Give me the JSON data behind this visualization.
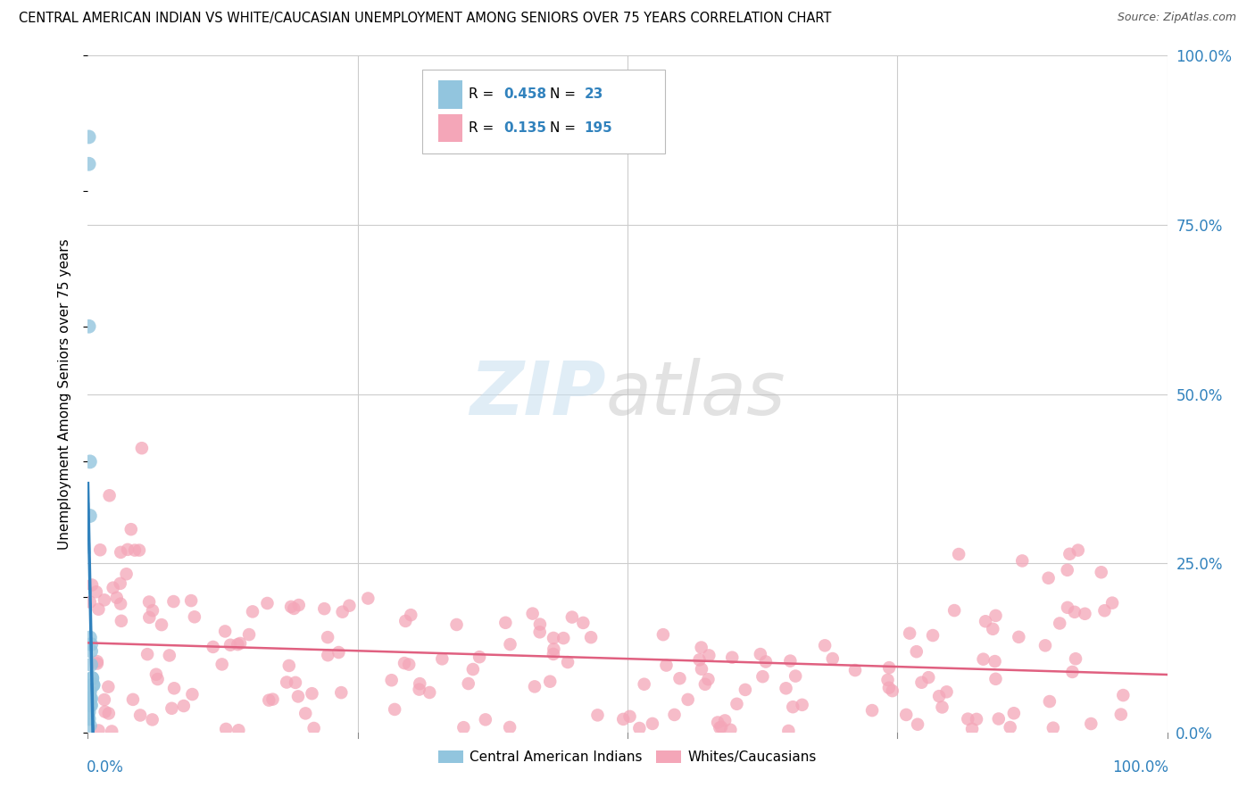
{
  "title": "CENTRAL AMERICAN INDIAN VS WHITE/CAUCASIAN UNEMPLOYMENT AMONG SENIORS OVER 75 YEARS CORRELATION CHART",
  "source": "Source: ZipAtlas.com",
  "ylabel": "Unemployment Among Seniors over 75 years",
  "legend_1_label": "Central American Indians",
  "legend_2_label": "Whites/Caucasians",
  "R1": 0.458,
  "N1": 23,
  "R2": 0.135,
  "N2": 195,
  "color_blue": "#92c5de",
  "color_pink": "#f4a6b8",
  "color_line_blue": "#3182bd",
  "color_line_pink": "#e06080",
  "ytick_values": [
    0.0,
    0.25,
    0.5,
    0.75,
    1.0
  ],
  "ytick_labels": [
    "0.0%",
    "25.0%",
    "50.0%",
    "75.0%",
    "100.0%"
  ]
}
